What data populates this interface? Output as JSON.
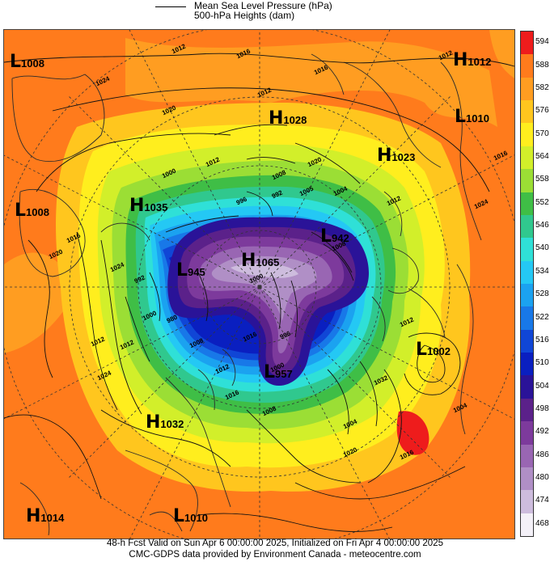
{
  "legend": {
    "line1": "Mean Sea Level Pressure (hPa)",
    "line2": "500-hPa Heights (dam)"
  },
  "colorbar": {
    "levels": [
      "594",
      "588",
      "582",
      "576",
      "570",
      "564",
      "558",
      "552",
      "546",
      "540",
      "534",
      "528",
      "522",
      "516",
      "510",
      "504",
      "498",
      "492",
      "486",
      "480",
      "474",
      "468"
    ],
    "colors": [
      "#ee1c1c",
      "#ff7b1c",
      "#ff9d21",
      "#ffc61e",
      "#ffee1e",
      "#d2ef2a",
      "#9bde35",
      "#3fbe46",
      "#30c88e",
      "#2fe0d7",
      "#24c8f4",
      "#1ba2f0",
      "#1878e8",
      "#1046d6",
      "#0a1fc0",
      "#2a1398",
      "#5b218a",
      "#7d3a9c",
      "#9966b3",
      "#b08fc6",
      "#cdbcdd",
      "#f4f1f8"
    ]
  },
  "centers": [
    {
      "id": "l1008-nw",
      "letter": "L",
      "value": "1008"
    },
    {
      "id": "h1012-ne",
      "letter": "H",
      "value": "1012"
    },
    {
      "id": "l1010-ne",
      "letter": "L",
      "value": "1010"
    },
    {
      "id": "h1028",
      "letter": "H",
      "value": "1028"
    },
    {
      "id": "h1023",
      "letter": "H",
      "value": "1023"
    },
    {
      "id": "l1008-w",
      "letter": "L",
      "value": "1008"
    },
    {
      "id": "h1035",
      "letter": "H",
      "value": "1035"
    },
    {
      "id": "l942",
      "letter": "L",
      "value": "942"
    },
    {
      "id": "l945",
      "letter": "L",
      "value": "945"
    },
    {
      "id": "h1065",
      "letter": "H",
      "value": "1065"
    },
    {
      "id": "l957",
      "letter": "L",
      "value": "957"
    },
    {
      "id": "l1002",
      "letter": "L",
      "value": "1002"
    },
    {
      "id": "h1032",
      "letter": "H",
      "value": "1032"
    },
    {
      "id": "h1014",
      "letter": "H",
      "value": "1014"
    },
    {
      "id": "l1010-s",
      "letter": "L",
      "value": "1010"
    }
  ],
  "isobar_labels": [
    "1012",
    "1016",
    "1024",
    "1020",
    "1012",
    "1016",
    "1000",
    "1012",
    "996",
    "1008",
    "992",
    "1005",
    "1004",
    "1012",
    "1020",
    "1012",
    "1016",
    "1024",
    "1020",
    "1016",
    "992",
    "1000",
    "980",
    "1012",
    "1012",
    "1016",
    "1008",
    "1032",
    "1024",
    "1020",
    "1016",
    "1008",
    "1000",
    "996",
    "1000",
    "1012",
    "1016",
    "1004",
    "1012",
    "1024",
    "1008",
    "1004"
  ],
  "footer": {
    "line1": "48-h Fcst Valid on Sun Apr  6 00:00:00 2025, Initialized on Fri Apr  4 00:00:00 2025",
    "line2": "CMC-GDPS data provided by Environment Canada - meteocentre.com"
  }
}
